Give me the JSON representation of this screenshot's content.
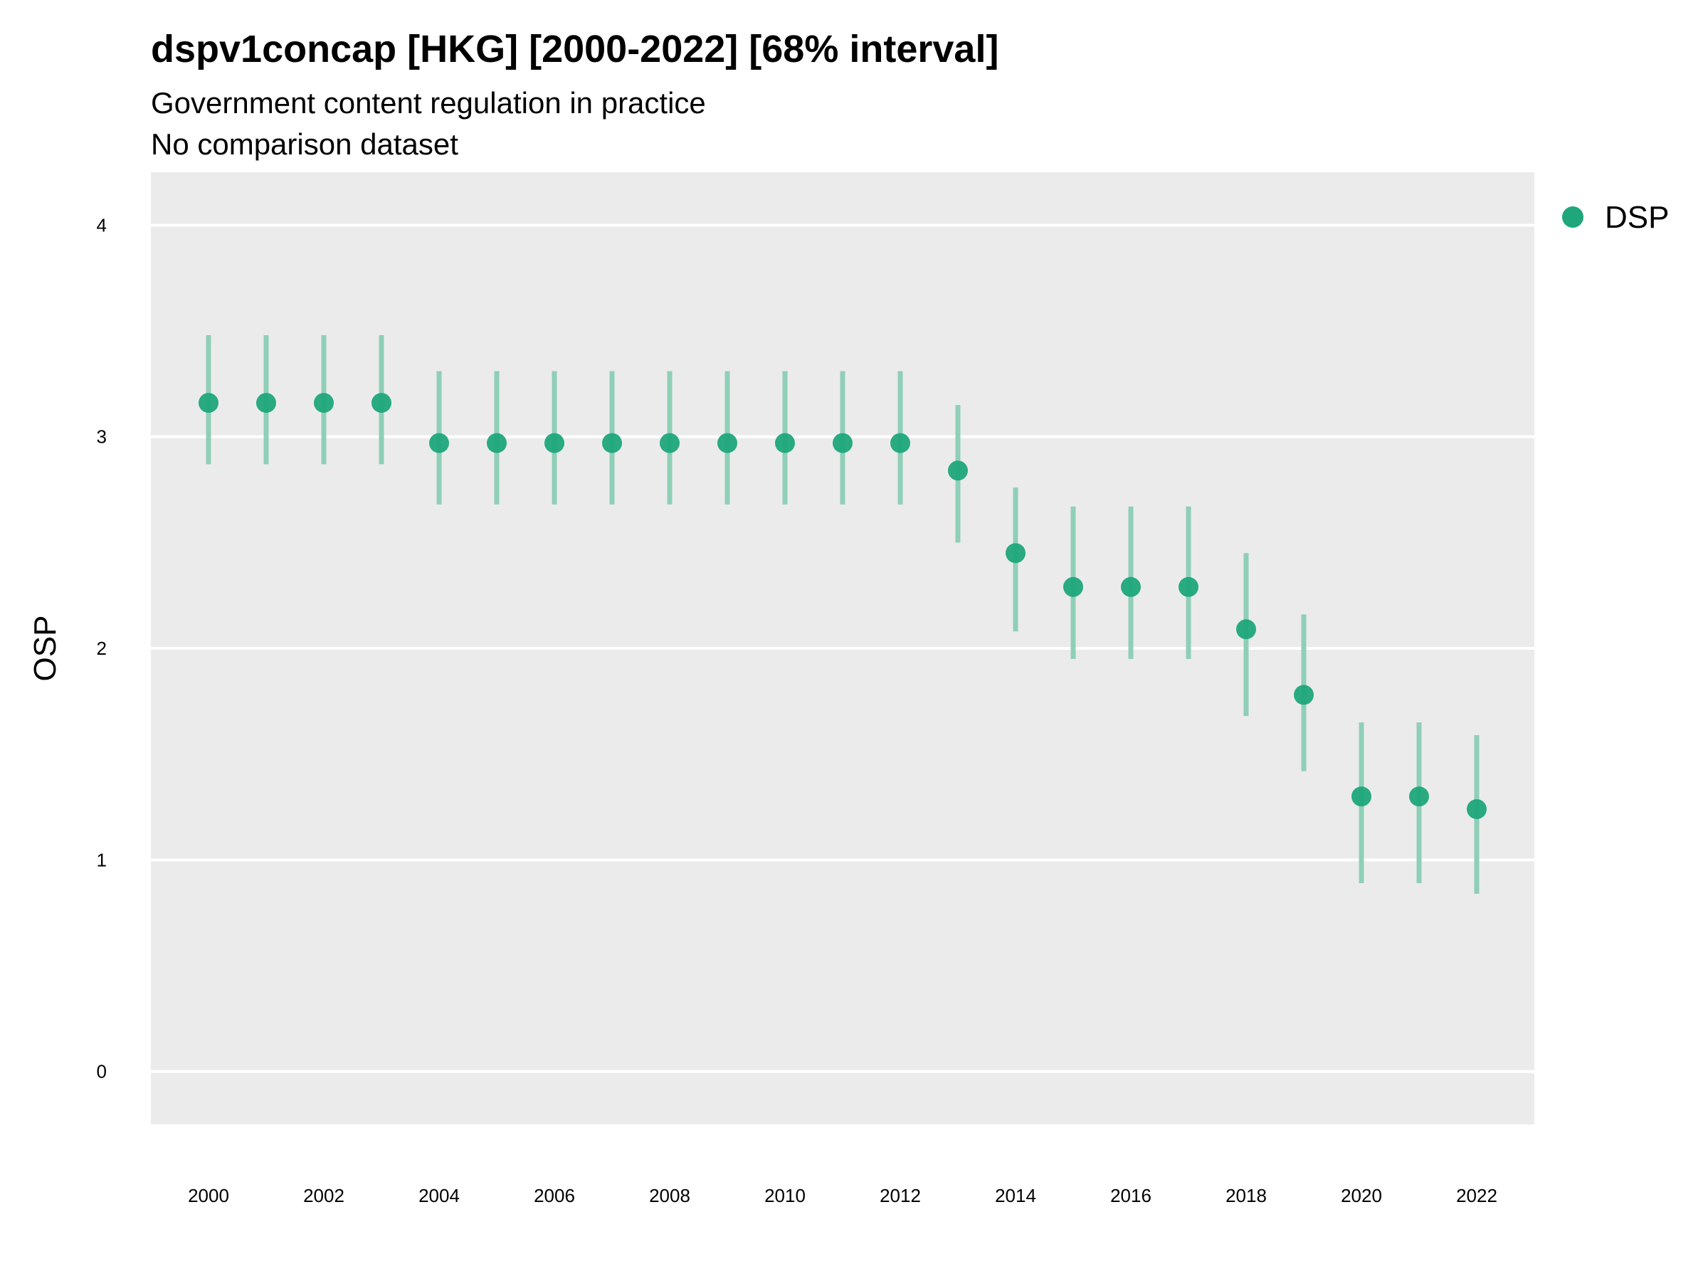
{
  "chart_data": {
    "type": "scatter",
    "title": "dspv1concap [HKG] [2000-2022] [68% interval]",
    "subtitle_lines": [
      "Government content regulation in practice",
      "No comparison dataset"
    ],
    "xlabel": "",
    "ylabel": "OSP",
    "xlim": [
      1999,
      2023
    ],
    "ylim": [
      -0.25,
      4.25
    ],
    "x_ticks": [
      2000,
      2002,
      2004,
      2006,
      2008,
      2010,
      2012,
      2014,
      2016,
      2018,
      2020,
      2022
    ],
    "y_ticks": [
      0,
      1,
      2,
      3,
      4
    ],
    "grid": true,
    "legend_position": "right",
    "series": [
      {
        "name": "DSP",
        "color": "#1fa67a",
        "interval_color": "#8fcfb7",
        "x": [
          2000,
          2001,
          2002,
          2003,
          2004,
          2005,
          2006,
          2007,
          2008,
          2009,
          2010,
          2011,
          2012,
          2013,
          2014,
          2015,
          2016,
          2017,
          2018,
          2019,
          2020,
          2021,
          2022
        ],
        "y": [
          3.16,
          3.16,
          3.16,
          3.16,
          2.97,
          2.97,
          2.97,
          2.97,
          2.97,
          2.97,
          2.97,
          2.97,
          2.97,
          2.84,
          2.45,
          2.29,
          2.29,
          2.29,
          2.09,
          1.78,
          1.3,
          1.3,
          1.24
        ],
        "lower": [
          2.87,
          2.87,
          2.87,
          2.87,
          2.68,
          2.68,
          2.68,
          2.68,
          2.68,
          2.68,
          2.68,
          2.68,
          2.68,
          2.5,
          2.08,
          1.95,
          1.95,
          1.95,
          1.68,
          1.42,
          0.89,
          0.89,
          0.84
        ],
        "upper": [
          3.48,
          3.48,
          3.48,
          3.48,
          3.31,
          3.31,
          3.31,
          3.31,
          3.31,
          3.31,
          3.31,
          3.31,
          3.31,
          3.15,
          2.76,
          2.67,
          2.67,
          2.67,
          2.45,
          2.16,
          1.65,
          1.65,
          1.59
        ]
      }
    ]
  }
}
